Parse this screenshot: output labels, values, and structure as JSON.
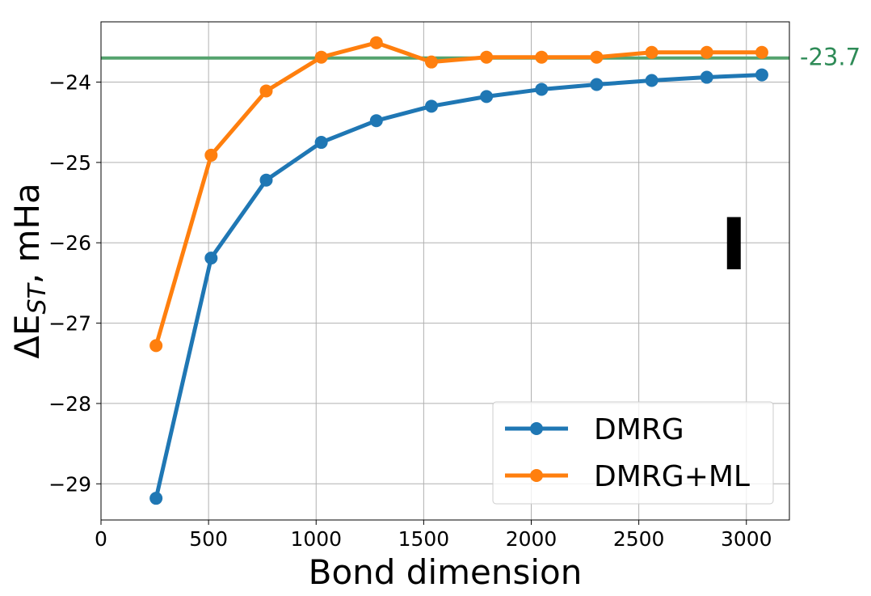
{
  "chart_data": {
    "type": "line",
    "title": "",
    "xlabel": "Bond dimension",
    "ylabel": {
      "prefix": "ΔE",
      "subscript": "ST",
      "suffix": ", mHa"
    },
    "xlim": [
      0,
      3200
    ],
    "ylim": [
      -29.45,
      -23.25
    ],
    "grid": true,
    "xticks": [
      0,
      500,
      1000,
      1500,
      2000,
      2500,
      3000
    ],
    "yticks": [
      -29,
      -28,
      -27,
      -26,
      -25,
      -24
    ],
    "legend_position": "lower-right",
    "x": [
      256,
      512,
      768,
      1024,
      1280,
      1536,
      1792,
      2048,
      2304,
      2560,
      2816,
      3072
    ],
    "series": [
      {
        "name": "DMRG",
        "color": "#1f77b4",
        "values": [
          -29.18,
          -26.19,
          -25.22,
          -24.75,
          -24.48,
          -24.3,
          -24.18,
          -24.09,
          -24.03,
          -23.98,
          -23.94,
          -23.91
        ]
      },
      {
        "name": "DMRG+ML",
        "color": "#ff7f0e",
        "values": [
          -27.28,
          -24.91,
          -24.11,
          -23.69,
          -23.51,
          -23.75,
          -23.69,
          -23.69,
          -23.69,
          -23.63,
          -23.63,
          -23.63
        ]
      }
    ],
    "reference_line": {
      "value": -23.7,
      "label": "-23.7",
      "color": "#2e8b57",
      "line_color": "#55a36e"
    },
    "error_bar": {
      "x": 2940,
      "y_low": -26.33,
      "y_high": -25.68,
      "color": "#000000"
    }
  }
}
